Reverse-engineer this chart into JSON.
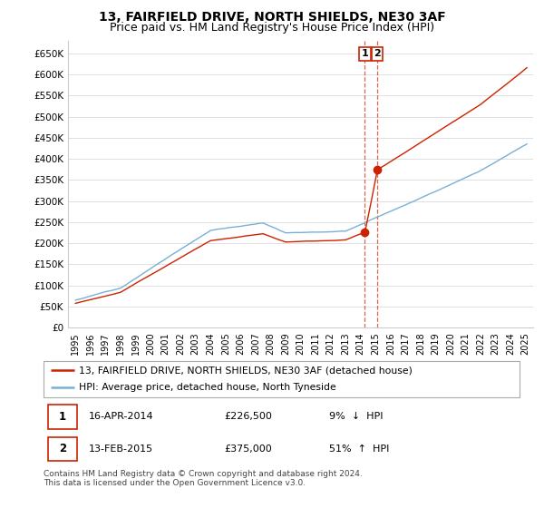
{
  "title": "13, FAIRFIELD DRIVE, NORTH SHIELDS, NE30 3AF",
  "subtitle": "Price paid vs. HM Land Registry's House Price Index (HPI)",
  "ylim": [
    0,
    680000
  ],
  "yticks": [
    0,
    50000,
    100000,
    150000,
    200000,
    250000,
    300000,
    350000,
    400000,
    450000,
    500000,
    550000,
    600000,
    650000
  ],
  "ytick_labels": [
    "£0",
    "£50K",
    "£100K",
    "£150K",
    "£200K",
    "£250K",
    "£300K",
    "£350K",
    "£400K",
    "£450K",
    "£500K",
    "£550K",
    "£600K",
    "£650K"
  ],
  "hpi_color": "#7ab0d4",
  "price_color": "#cc2200",
  "vline_color": "#cc2200",
  "grid_color": "#e0e0e0",
  "legend_label_price": "13, FAIRFIELD DRIVE, NORTH SHIELDS, NE30 3AF (detached house)",
  "legend_label_hpi": "HPI: Average price, detached house, North Tyneside",
  "footer": "Contains HM Land Registry data © Crown copyright and database right 2024.\nThis data is licensed under the Open Government Licence v3.0.",
  "xlim_start": 1994.5,
  "xlim_end": 2025.5,
  "sale1_x": 2014.29,
  "sale1_y": 226500,
  "sale2_x": 2015.12,
  "sale2_y": 375000,
  "title_fontsize": 10,
  "subtitle_fontsize": 9
}
